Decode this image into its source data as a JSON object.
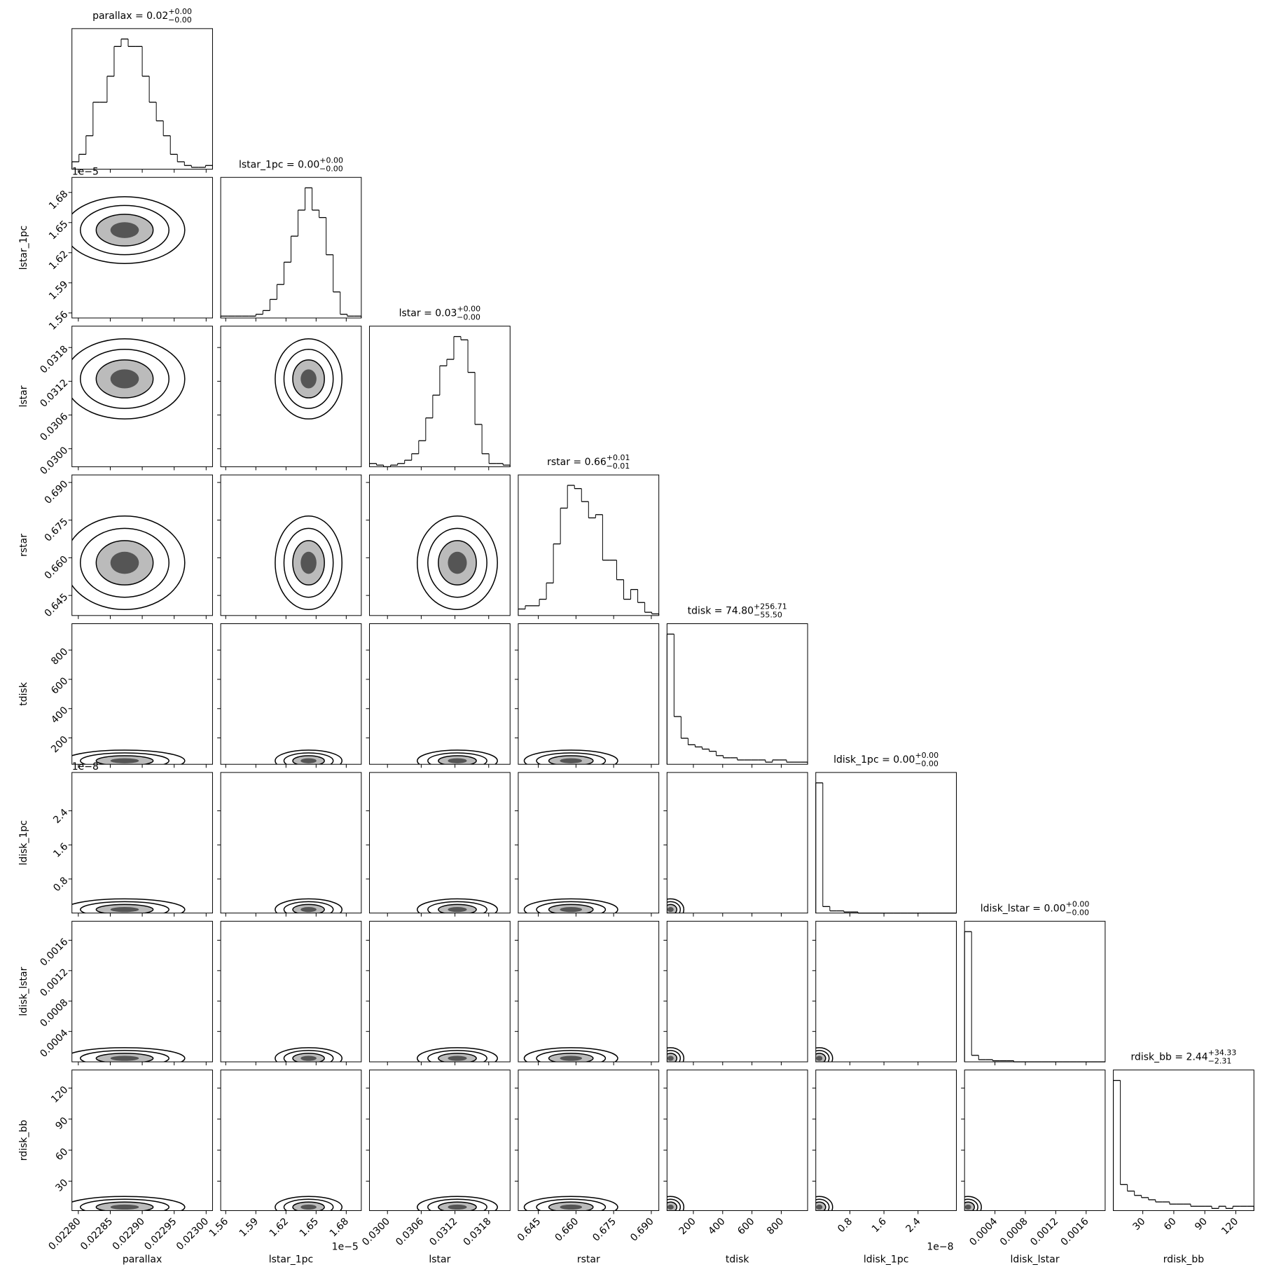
{
  "chart_data": {
    "type": "corner",
    "color": "#000000",
    "variables": [
      {
        "name": "parallax",
        "title": "parallax = 0.02",
        "title_upper": "+0.00",
        "title_lower": "−0.00",
        "lim": [
          0.02279,
          0.02301
        ],
        "ticks": [
          {
            "value": 0.0228,
            "label": "0.02280"
          },
          0.02285,
          {
            "value": 0.0229,
            "label": "0.02290"
          },
          0.02295,
          {
            "value": 0.023,
            "label": "0.02300"
          }
        ],
        "bins": [
          0.02279,
          0.022801,
          0.022812,
          0.022823,
          0.022834,
          0.022845,
          0.022856,
          0.022867,
          0.022878,
          0.022889,
          0.0229,
          0.022911,
          0.022922,
          0.022933,
          0.022944,
          0.022955,
          0.022966,
          0.022977,
          0.022988,
          0.022999,
          0.02301
        ],
        "counts": [
          2,
          4,
          9,
          18,
          18,
          25,
          33,
          35,
          33,
          33,
          25,
          18,
          13,
          9,
          4,
          2,
          1,
          0.5,
          0.5,
          1
        ]
      },
      {
        "name": "lstar_1pc",
        "title": "lstar_1pc = 0.00",
        "title_upper": "+0.00",
        "title_lower": "−0.00",
        "offset": "1e−5",
        "lim": [
          1.555,
          1.695
        ],
        "ticks": [
          1.56,
          1.59,
          1.62,
          1.65,
          1.68
        ],
        "bins": [
          1.555,
          1.562,
          1.569,
          1.576,
          1.583,
          1.59,
          1.597,
          1.604,
          1.611,
          1.618,
          1.625,
          1.632,
          1.639,
          1.646,
          1.653,
          1.66,
          1.667,
          1.674,
          1.681,
          1.688,
          1.695
        ],
        "counts": [
          0.5,
          0.5,
          0.5,
          0.5,
          0.5,
          1,
          2,
          5,
          9,
          15,
          22,
          29,
          35,
          29,
          27,
          17,
          7,
          1,
          0.5,
          0.5
        ]
      },
      {
        "name": "lstar",
        "title": "lstar = 0.03",
        "title_upper": "+0.00",
        "title_lower": "−0.00",
        "lim": [
          0.02968,
          0.03218
        ],
        "ticks": [
          {
            "value": 0.03,
            "label": "0.0300"
          },
          0.0306,
          0.0312,
          0.0318
        ],
        "bins": [
          0.02968,
          0.029805,
          0.02993,
          0.030055,
          0.03018,
          0.030305,
          0.03043,
          0.030555,
          0.03068,
          0.030805,
          0.03093,
          0.031055,
          0.03118,
          0.031305,
          0.03143,
          0.031555,
          0.03168,
          0.031805,
          0.03193,
          0.032055,
          0.03218
        ],
        "counts": [
          1,
          0.5,
          0,
          0.5,
          1,
          2,
          4,
          8,
          15,
          22,
          31,
          33,
          40,
          39,
          29,
          13,
          4,
          1,
          1,
          0.5
        ]
      },
      {
        "name": "rstar",
        "title": "rstar = 0.66",
        "title_upper": "+0.01",
        "title_lower": "−0.01",
        "lim": [
          0.637,
          0.693
        ],
        "ticks": [
          0.645,
          {
            "value": 0.66,
            "label": "0.660"
          },
          0.675,
          {
            "value": 0.69,
            "label": "0.690"
          }
        ],
        "bins": [
          0.637,
          0.6398,
          0.6426,
          0.6454,
          0.6482,
          0.651,
          0.6538,
          0.6566,
          0.6594,
          0.6622,
          0.665,
          0.6678,
          0.6706,
          0.6734,
          0.6762,
          0.679,
          0.6818,
          0.6846,
          0.6874,
          0.6902,
          0.693
        ],
        "counts": [
          2,
          3,
          3,
          5,
          10,
          22,
          33,
          40,
          39,
          35,
          30,
          31,
          17,
          17,
          11,
          5,
          8,
          4,
          1,
          0.5
        ]
      },
      {
        "name": "tdisk",
        "title": "tdisk = 74.80",
        "title_upper": "+256.71",
        "title_lower": "−55.50",
        "lim": [
          20,
          980
        ],
        "ticks": [
          200,
          400,
          600,
          800
        ],
        "bins": [
          20,
          68,
          116,
          164,
          212,
          260,
          308,
          356,
          404,
          452,
          500,
          548,
          596,
          644,
          692,
          740,
          788,
          836,
          884,
          932,
          980
        ],
        "counts": [
          60,
          22,
          12,
          9,
          8,
          7,
          6,
          4,
          3,
          3,
          2,
          2,
          2,
          2,
          1,
          2,
          2,
          1,
          1,
          1
        ]
      },
      {
        "name": "ldisk_1pc",
        "title": "ldisk_1pc = 0.00",
        "title_upper": "+0.00",
        "title_lower": "−0.00",
        "offset": "1e−8",
        "lim": [
          0,
          3.3
        ],
        "ticks": [
          0.8,
          1.6,
          2.4
        ],
        "bins": [
          0,
          0.165,
          0.33,
          0.495,
          0.66,
          0.825,
          0.99,
          1.155,
          1.32,
          1.485,
          1.65,
          1.815,
          1.98,
          2.145,
          2.31,
          2.475,
          2.64,
          2.805,
          2.97,
          3.135,
          3.3
        ],
        "counts": [
          60,
          3,
          1,
          1,
          0.5,
          0.5,
          0,
          0,
          0,
          0,
          0,
          0,
          0,
          0,
          0,
          0,
          0,
          0,
          0,
          0
        ]
      },
      {
        "name": "ldisk_lstar",
        "title": "ldisk_lstar = 0.00",
        "title_upper": "+0.00",
        "title_lower": "−0.00",
        "lim": [
          0,
          0.00185
        ],
        "ticks": [
          0.0004,
          0.0008,
          0.0012,
          0.0016
        ],
        "bins": [
          0,
          9.25e-05,
          0.000185,
          0.0002775,
          0.00037,
          0.0004625,
          0.000555,
          0.0006475,
          0.00074,
          0.0008325,
          0.000925,
          0.0010175,
          0.00111,
          0.0012025,
          0.001295,
          0.0013875,
          0.00148,
          0.0015725,
          0.001665,
          0.0017575,
          0.00185
        ],
        "counts": [
          60,
          3,
          1,
          1,
          0.5,
          0.5,
          0.5,
          0,
          0,
          0,
          0,
          0,
          0,
          0,
          0,
          0,
          0,
          0,
          0,
          0
        ]
      },
      {
        "name": "rdisk_bb",
        "title": "rdisk_bb = 2.44",
        "title_upper": "+34.33",
        "title_lower": "−2.31",
        "lim": [
          1.5,
          137.5
        ],
        "ticks": [
          30,
          60,
          90,
          120
        ],
        "bins": [
          1.5,
          8.3,
          15.1,
          21.9,
          28.7,
          35.5,
          42.3,
          49.1,
          55.9,
          62.7,
          69.5,
          76.3,
          83.1,
          89.9,
          96.7,
          103.5,
          110.3,
          117.1,
          123.9,
          130.7,
          137.5
        ],
        "counts": [
          60,
          12,
          9,
          7,
          6,
          5,
          4,
          4,
          3,
          3,
          3,
          2,
          2,
          2,
          1,
          2,
          1,
          2,
          2,
          2
        ]
      }
    ]
  }
}
